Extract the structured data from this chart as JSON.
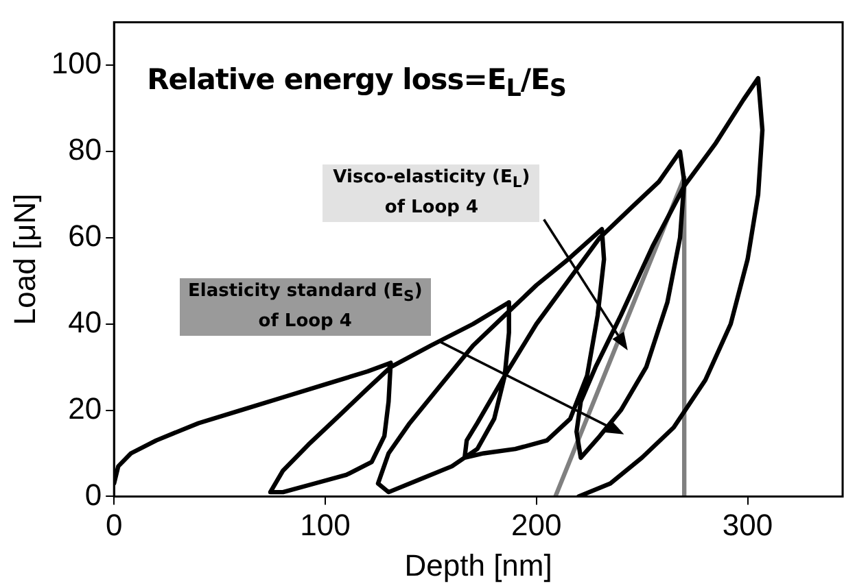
{
  "chart_data": {
    "type": "line",
    "title": "Relative energy loss=E$_{L}$/E$_{S}$",
    "xlabel": "Depth [nm]",
    "ylabel": "Load [μN]",
    "xlim": [
      0,
      345
    ],
    "ylim": [
      0,
      110
    ],
    "xticks": [
      0,
      100,
      200,
      300
    ],
    "yticks": [
      0,
      20,
      40,
      60,
      80,
      100
    ],
    "grid": false,
    "legend": false,
    "marker": "none",
    "line_style": "solid",
    "series": [
      {
        "color": "#000000",
        "x": [
          0,
          2,
          8,
          20,
          40,
          60,
          80,
          100,
          120,
          131,
          130,
          128,
          122,
          110,
          95,
          80,
          74,
          80,
          92,
          105,
          120,
          131,
          150,
          170,
          187,
          187,
          185,
          180,
          172,
          160,
          145,
          130,
          125,
          130,
          140,
          155,
          170,
          185,
          200,
          215,
          231,
          232,
          229,
          224,
          216,
          205,
          190,
          175,
          166,
          167,
          172,
          185,
          200,
          215,
          230,
          245,
          258,
          268,
          270,
          268,
          262,
          252,
          240,
          230,
          221,
          219,
          221,
          228,
          240,
          255,
          270,
          285,
          298,
          305,
          307,
          305,
          300,
          292,
          280,
          265,
          250,
          235,
          220
        ],
        "values": [
          3,
          7,
          10,
          13,
          17,
          20,
          23,
          26,
          29,
          31,
          22,
          14,
          8,
          5,
          3,
          1,
          1,
          6,
          12,
          18,
          25,
          30,
          35,
          40,
          45,
          38,
          28,
          18,
          11,
          7,
          4,
          1,
          3,
          10,
          17,
          26,
          35,
          42,
          49,
          55,
          62,
          55,
          42,
          28,
          18,
          13,
          11,
          10,
          9,
          13,
          17,
          28,
          40,
          50,
          60,
          67,
          73,
          80,
          73,
          60,
          45,
          30,
          20,
          14,
          9,
          15,
          22,
          30,
          42,
          58,
          72,
          82,
          92,
          97,
          85,
          70,
          55,
          40,
          27,
          16,
          9,
          3,
          0
        ]
      },
      {
        "color": "#808080",
        "x": [
          209,
          270,
          270
        ],
        "values": [
          0,
          74,
          0
        ]
      }
    ],
    "annotations": [
      "Visco-elasticity (E$_{L}$) of Loop 4",
      "Elasticity standard (E$_{S}$) of Loop 4"
    ]
  }
}
